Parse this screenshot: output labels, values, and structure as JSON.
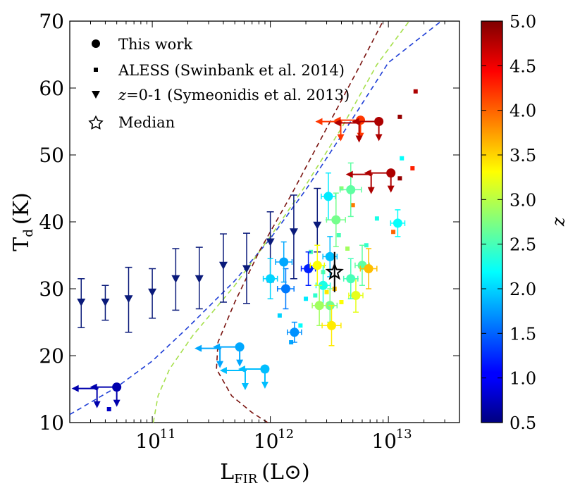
{
  "chart_data": {
    "type": "scatter",
    "xscale": "log",
    "xlabel": "L",
    "xlabel_sub": "FIR",
    "xlabel_unit": "(L⊙)",
    "ylabel": "T",
    "ylabel_sub": "d",
    "ylabel_unit": "(K)",
    "xlim": [
      20000000000.0,
      40000000000000.0
    ],
    "ylim": [
      10,
      70
    ],
    "yticks": [
      10,
      20,
      30,
      40,
      50,
      60,
      70
    ],
    "xticks": [
      {
        "value": 100000000000.0,
        "base": "10",
        "exp": "11"
      },
      {
        "value": 1000000000000.0,
        "base": "10",
        "exp": "12"
      },
      {
        "value": 10000000000000.0,
        "base": "10",
        "exp": "13"
      }
    ],
    "colorbar": {
      "label": "z",
      "range": [
        0.5,
        5.0
      ],
      "ticks": [
        "0.5",
        "1.0",
        "1.5",
        "2.0",
        "2.5",
        "3.0",
        "3.5",
        "4.0",
        "4.5",
        "5.0"
      ],
      "colormap": "jet"
    },
    "legend": {
      "position": "top-left",
      "entries": [
        {
          "marker": "circle",
          "label": "This work"
        },
        {
          "marker": "square",
          "label": "ALESS (Swinbank et al. 2014)"
        },
        {
          "marker": "triangle-down",
          "label_italic": "z",
          "label": "=0-1 (Symeonidis et al. 2013)"
        },
        {
          "marker": "star",
          "label": "Median"
        }
      ]
    },
    "series": [
      {
        "name": "z=0-1 (Symeonidis et al. 2013)",
        "marker": "triangle-down",
        "color": "#0a1a7a",
        "points": [
          {
            "x": 25000000000.0,
            "y": 28.0,
            "ylo": 24.2,
            "yhi": 31.5
          },
          {
            "x": 40000000000.0,
            "y": 28.0,
            "ylo": 25.3,
            "yhi": 30.5
          },
          {
            "x": 63000000000.0,
            "y": 28.5,
            "ylo": 23.5,
            "yhi": 33.2
          },
          {
            "x": 100000000000.0,
            "y": 29.5,
            "ylo": 25.6,
            "yhi": 33.0
          },
          {
            "x": 158000000000.0,
            "y": 31.5,
            "ylo": 26.8,
            "yhi": 36.0
          },
          {
            "x": 250000000000.0,
            "y": 31.5,
            "ylo": 27.0,
            "yhi": 36.2
          },
          {
            "x": 400000000000.0,
            "y": 33.5,
            "ylo": 28.0,
            "yhi": 38.2
          },
          {
            "x": 630000000000.0,
            "y": 33.0,
            "ylo": 27.8,
            "yhi": 38.3
          },
          {
            "x": 1000000000000.0,
            "y": 37.0,
            "ylo": 31.0,
            "yhi": 41.5
          },
          {
            "x": 1580000000000.0,
            "y": 38.5,
            "ylo": 31.5,
            "yhi": 44.0
          },
          {
            "x": 2500000000000.0,
            "y": 39.5,
            "ylo": 35.5,
            "yhi": 45.0
          }
        ]
      },
      {
        "name": "This work",
        "marker": "circle",
        "points": [
          {
            "x": 50000000000.0,
            "y": 15.3,
            "z": 0.7,
            "ulx": true,
            "uly": true
          },
          {
            "x": 900000000000.0,
            "y": 18.0,
            "z": 1.9,
            "ulx": true,
            "uly": true
          },
          {
            "x": 550000000000.0,
            "y": 21.3,
            "z": 1.8,
            "ulx": true,
            "uly": true
          },
          {
            "x": 1600000000000.0,
            "y": 23.5,
            "z": 1.7,
            "xerr": 0.06,
            "yerr": 1.5
          },
          {
            "x": 1000000000000.0,
            "y": 31.5,
            "z": 2.0,
            "xerr": 0.06,
            "yerr": 3.0
          },
          {
            "x": 1350000000000.0,
            "y": 30.0,
            "z": 1.6,
            "xerr": 0.07,
            "yerr": 3.0
          },
          {
            "x": 1300000000000.0,
            "y": 34.0,
            "z": 1.8,
            "xerr": 0.07,
            "yerr": 3.0
          },
          {
            "x": 2100000000000.0,
            "y": 33.0,
            "z": 1.2,
            "xerr": 0.06,
            "yerr": 2.5
          },
          {
            "x": 2800000000000.0,
            "y": 30.5,
            "z": 2.3,
            "xerr": 0.06,
            "yerr": 3.0
          },
          {
            "x": 3200000000000.0,
            "y": 34.8,
            "z": 1.9,
            "xerr": 0.06,
            "yerr": 3.0
          },
          {
            "x": 2500000000000.0,
            "y": 33.5,
            "z": 3.3,
            "xerr": 0.06,
            "yerr": 3.0
          },
          {
            "x": 3200000000000.0,
            "y": 27.5,
            "z": 2.7,
            "xerr": 0.06,
            "yerr": 2.5
          },
          {
            "x": 2600000000000.0,
            "y": 27.5,
            "z": 2.9,
            "xerr": 0.06,
            "yerr": 3.0
          },
          {
            "x": 3300000000000.0,
            "y": 24.5,
            "z": 3.4,
            "xerr": 0.08,
            "yerr": 3.0
          },
          {
            "x": 3100000000000.0,
            "y": 43.8,
            "z": 2.1,
            "xerr": 0.06,
            "yerr": 3.5
          },
          {
            "x": 3600000000000.0,
            "y": 40.3,
            "z": 2.7,
            "xerr": 0.08,
            "yerr": 4.0
          },
          {
            "x": 4800000000000.0,
            "y": 44.8,
            "z": 2.6,
            "xerr": 0.09,
            "yerr": 4.0
          },
          {
            "x": 5300000000000.0,
            "y": 29.0,
            "z": 3.2,
            "xerr": 0.06,
            "yerr": 2.5
          },
          {
            "x": 4800000000000.0,
            "y": 31.5,
            "z": 2.5,
            "xerr": 0.06,
            "yerr": 3.0
          },
          {
            "x": 6000000000000.0,
            "y": 33.5,
            "z": 2.6,
            "xerr": 0.06,
            "yerr": 3.0
          },
          {
            "x": 6800000000000.0,
            "y": 33.0,
            "z": 3.6,
            "xerr": 0.07,
            "yerr": 3.0
          },
          {
            "x": 12000000000000.0,
            "y": 39.8,
            "z": 2.2,
            "xerr": 0.06,
            "yerr": 2.0
          },
          {
            "x": 5800000000000.0,
            "y": 55.2,
            "z": 4.2,
            "ulx": true,
            "uly": true
          },
          {
            "x": 8300000000000.0,
            "y": 55.0,
            "z": 4.8,
            "ulx": true,
            "uly": true
          },
          {
            "x": 10500000000000.0,
            "y": 47.3,
            "z": 4.8,
            "ulx": true,
            "uly": true
          }
        ]
      },
      {
        "name": "ALESS (Swinbank et al. 2014)",
        "marker": "square",
        "points": [
          {
            "x": 43000000000.0,
            "y": 12.0,
            "z": 0.8
          },
          {
            "x": 1200000000000.0,
            "y": 26.0,
            "z": 2.0
          },
          {
            "x": 1500000000000.0,
            "y": 22.0,
            "z": 1.8
          },
          {
            "x": 1800000000000.0,
            "y": 24.5,
            "z": 2.2
          },
          {
            "x": 2000000000000.0,
            "y": 28.5,
            "z": 2.1
          },
          {
            "x": 2400000000000.0,
            "y": 29.0,
            "z": 2.4
          },
          {
            "x": 2800000000000.0,
            "y": 32.5,
            "z": 2.6
          },
          {
            "x": 3000000000000.0,
            "y": 29.5,
            "z": 3.4
          },
          {
            "x": 3500000000000.0,
            "y": 30.0,
            "z": 3.6
          },
          {
            "x": 4000000000000.0,
            "y": 28.0,
            "z": 3.3
          },
          {
            "x": 4500000000000.0,
            "y": 36.0,
            "z": 2.9
          },
          {
            "x": 3800000000000.0,
            "y": 38.0,
            "z": 2.5
          },
          {
            "x": 5000000000000.0,
            "y": 42.5,
            "z": 3.9
          },
          {
            "x": 4000000000000.0,
            "y": 45.0,
            "z": 2.8
          },
          {
            "x": 2200000000000.0,
            "y": 35.5,
            "z": 2.5
          },
          {
            "x": 11000000000000.0,
            "y": 38.5,
            "z": 4.0
          },
          {
            "x": 13000000000000.0,
            "y": 49.5,
            "z": 2.2
          },
          {
            "x": 16000000000000.0,
            "y": 48.0,
            "z": 4.3
          },
          {
            "x": 12500000000000.0,
            "y": 46.5,
            "z": 4.9
          },
          {
            "x": 12500000000000.0,
            "y": 55.7,
            "z": 4.9
          },
          {
            "x": 17000000000000.0,
            "y": 59.5,
            "z": 4.8
          },
          {
            "x": 8000000000000.0,
            "y": 40.5,
            "z": 2.3
          },
          {
            "x": 6500000000000.0,
            "y": 36.5,
            "z": 2.4
          }
        ]
      },
      {
        "name": "Median",
        "marker": "star",
        "points": [
          {
            "x": 3500000000000.0,
            "y": 32.5,
            "yerr": 3.0
          }
        ]
      }
    ],
    "curves": [
      {
        "name": "z=0 detection limit",
        "color": "#1f3fd6",
        "dash": true
      },
      {
        "name": "z=2 detection limit",
        "color": "#a6e04c",
        "dash": true
      },
      {
        "name": "z=4 detection limit",
        "color": "#7a1410",
        "dash": true
      }
    ]
  }
}
